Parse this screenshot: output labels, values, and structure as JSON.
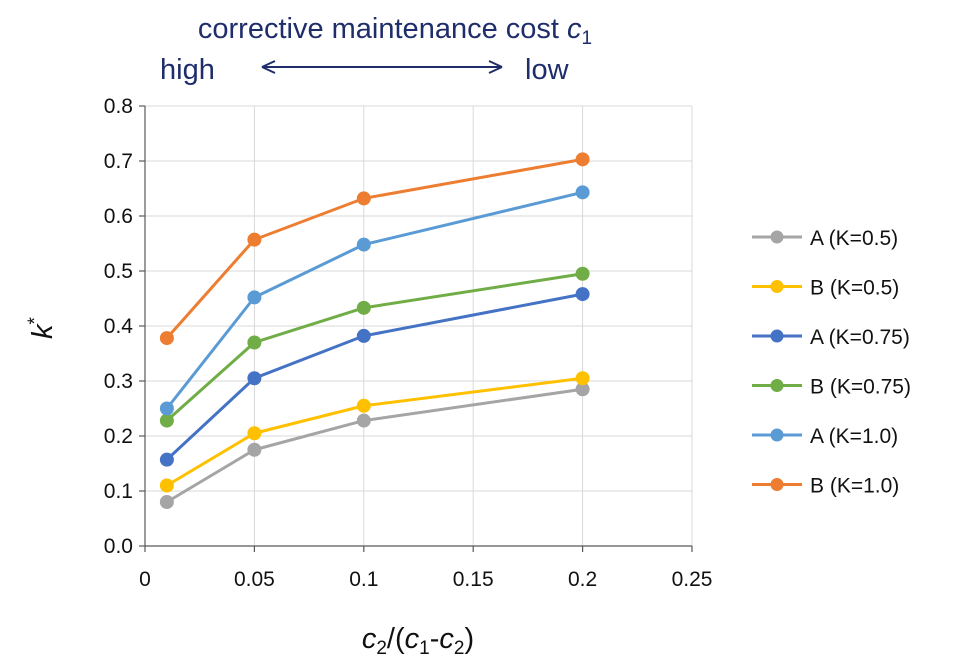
{
  "chart_data": {
    "type": "line",
    "x": [
      0.01,
      0.05,
      0.1,
      0.2
    ],
    "series": [
      {
        "name": "A (K=0.5)",
        "color": "#a5a5a5",
        "values": [
          0.08,
          0.175,
          0.228,
          0.285
        ]
      },
      {
        "name": "B (K=0.5)",
        "color": "#ffc000",
        "values": [
          0.11,
          0.205,
          0.255,
          0.305
        ]
      },
      {
        "name": "A (K=0.75)",
        "color": "#4472c4",
        "values": [
          0.157,
          0.305,
          0.382,
          0.458
        ]
      },
      {
        "name": "B (K=0.75)",
        "color": "#70ad47",
        "values": [
          0.228,
          0.37,
          0.433,
          0.495
        ]
      },
      {
        "name": "A (K=1.0)",
        "color": "#5b9bd5",
        "values": [
          0.25,
          0.452,
          0.548,
          0.643
        ]
      },
      {
        "name": "B (K=1.0)",
        "color": "#ed7d31",
        "values": [
          0.378,
          0.557,
          0.632,
          0.703
        ]
      }
    ],
    "xlim": [
      0,
      0.25
    ],
    "ylim": [
      0,
      0.8
    ],
    "xticks": [
      "0",
      "0.05",
      "0.1",
      "0.15",
      "0.2",
      "0.25"
    ],
    "yticks": [
      "0.0",
      "0.1",
      "0.2",
      "0.3",
      "0.4",
      "0.5",
      "0.6",
      "0.7",
      "0.8"
    ],
    "xlabel": {
      "c1": "c",
      "s1": "2",
      "p1": "/(",
      "c2": "c",
      "s2": "1",
      "p2": "-",
      "c3": "c",
      "s3": "2",
      "p3": ")"
    },
    "ylabel": {
      "k": "k",
      "sup": "*"
    },
    "annotation": {
      "line1": "corrective maintenance cost ",
      "var": "c",
      "sub": "1",
      "left": "high",
      "right": "low",
      "color": "#1f2d6b"
    },
    "grid": true,
    "legend_position": "right"
  }
}
